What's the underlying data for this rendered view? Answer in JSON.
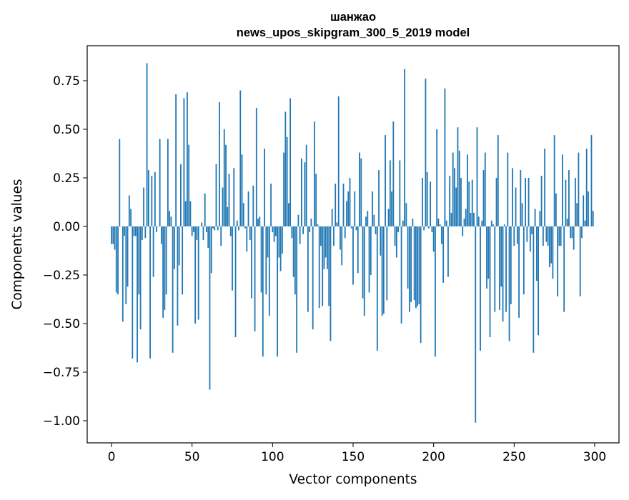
{
  "chart_data": {
    "type": "bar",
    "title_line1": "шанжао",
    "title_line2": "news_upos_skipgram_300_5_2019 model",
    "xlabel": "Vector components",
    "ylabel": "Components values",
    "xlim": [
      -15.1,
      315.1
    ],
    "ylim": [
      -1.114,
      0.93
    ],
    "xticks": [
      0,
      50,
      100,
      150,
      200,
      250,
      300
    ],
    "xtick_labels": [
      "0",
      "50",
      "100",
      "150",
      "200",
      "250",
      "300"
    ],
    "yticks": [
      -1.0,
      -0.75,
      -0.5,
      -0.25,
      0.0,
      0.25,
      0.5,
      0.75
    ],
    "ytick_labels": [
      "−1.00",
      "−0.75",
      "−0.50",
      "−0.25",
      "0.00",
      "0.25",
      "0.50",
      "0.75"
    ],
    "grid": false,
    "bar_color": "#1f77b4",
    "values": [
      -0.09,
      -0.09,
      -0.12,
      -0.34,
      -0.35,
      0.45,
      0.0,
      -0.49,
      -0.05,
      -0.4,
      -0.31,
      0.16,
      0.09,
      -0.68,
      -0.05,
      -0.05,
      -0.7,
      -0.35,
      -0.53,
      -0.07,
      0.2,
      -0.06,
      0.84,
      0.29,
      -0.68,
      0.26,
      -0.26,
      0.28,
      -0.03,
      0.0,
      0.45,
      -0.09,
      -0.47,
      -0.43,
      -0.35,
      0.45,
      0.08,
      0.05,
      -0.65,
      -0.22,
      0.68,
      -0.51,
      -0.2,
      0.32,
      -0.35,
      0.66,
      0.13,
      0.69,
      0.42,
      0.13,
      -0.05,
      -0.03,
      -0.5,
      -0.07,
      -0.48,
      0.0,
      0.02,
      -0.07,
      0.17,
      -0.03,
      -0.11,
      -0.84,
      -0.24,
      -0.01,
      -0.02,
      0.32,
      -0.02,
      0.64,
      -0.1,
      0.2,
      0.5,
      0.42,
      0.1,
      0.27,
      -0.05,
      -0.33,
      0.3,
      -0.57,
      0.03,
      -0.02,
      0.7,
      0.37,
      0.12,
      -0.01,
      -0.13,
      0.18,
      -0.07,
      -0.37,
      0.21,
      -0.54,
      0.61,
      0.04,
      0.05,
      -0.34,
      -0.67,
      0.4,
      -0.35,
      -0.16,
      -0.46,
      0.22,
      -0.03,
      -0.08,
      -0.05,
      -0.67,
      -0.16,
      -0.23,
      -0.14,
      0.38,
      0.59,
      0.46,
      0.12,
      0.66,
      -0.06,
      -0.26,
      -0.35,
      -0.65,
      0.06,
      -0.09,
      0.35,
      -0.04,
      0.33,
      0.42,
      -0.44,
      -0.03,
      0.04,
      -0.53,
      0.54,
      0.27,
      0.01,
      -0.42,
      -0.1,
      -0.41,
      -0.22,
      -0.16,
      -0.22,
      -0.41,
      -0.59,
      0.09,
      -0.1,
      0.22,
      0.02,
      0.67,
      -0.12,
      -0.2,
      0.22,
      -0.06,
      0.13,
      0.18,
      0.25,
      -0.01,
      -0.3,
      0.18,
      -0.02,
      -0.24,
      0.38,
      0.35,
      -0.37,
      -0.46,
      0.05,
      0.08,
      -0.34,
      -0.25,
      0.18,
      0.06,
      -0.04,
      -0.64,
      0.29,
      -0.15,
      -0.46,
      -0.45,
      0.47,
      -0.38,
      0.09,
      0.34,
      0.18,
      0.54,
      -0.1,
      -0.16,
      -0.03,
      0.34,
      -0.5,
      0.03,
      0.81,
      0.12,
      -0.32,
      -0.44,
      -0.39,
      0.04,
      -0.38,
      -0.42,
      -0.41,
      -0.4,
      -0.6,
      0.25,
      -0.02,
      0.76,
      0.28,
      -0.01,
      0.23,
      -0.03,
      -0.13,
      -0.67,
      0.5,
      0.04,
      0.01,
      -0.09,
      -0.29,
      0.71,
      0.03,
      -0.26,
      0.26,
      0.07,
      0.38,
      0.3,
      0.2,
      0.51,
      0.39,
      0.25,
      -0.05,
      0.04,
      0.09,
      0.37,
      0.23,
      0.07,
      0.24,
      0.07,
      -1.01,
      0.51,
      0.05,
      -0.64,
      0.03,
      0.29,
      0.38,
      -0.32,
      -0.27,
      -0.57,
      0.03,
      0.01,
      -0.44,
      0.25,
      0.47,
      -0.43,
      -0.31,
      -0.49,
      0.01,
      -0.44,
      0.38,
      -0.59,
      -0.4,
      0.3,
      -0.1,
      0.2,
      -0.09,
      -0.47,
      0.29,
      0.12,
      -0.35,
      0.25,
      -0.08,
      0.25,
      -0.13,
      -0.04,
      -0.65,
      0.09,
      -0.28,
      -0.56,
      0.08,
      0.26,
      -0.1,
      0.4,
      -0.08,
      -0.1,
      -0.21,
      -0.19,
      -0.27,
      0.47,
      0.17,
      -0.36,
      -0.1,
      -0.1,
      0.37,
      -0.44,
      0.24,
      0.04,
      0.29,
      -0.06,
      -0.06,
      -0.12,
      0.25,
      0.12,
      0.38,
      -0.36,
      -0.06,
      0.16,
      0.03,
      0.4,
      0.18,
      0.0,
      0.47,
      0.08
    ]
  }
}
